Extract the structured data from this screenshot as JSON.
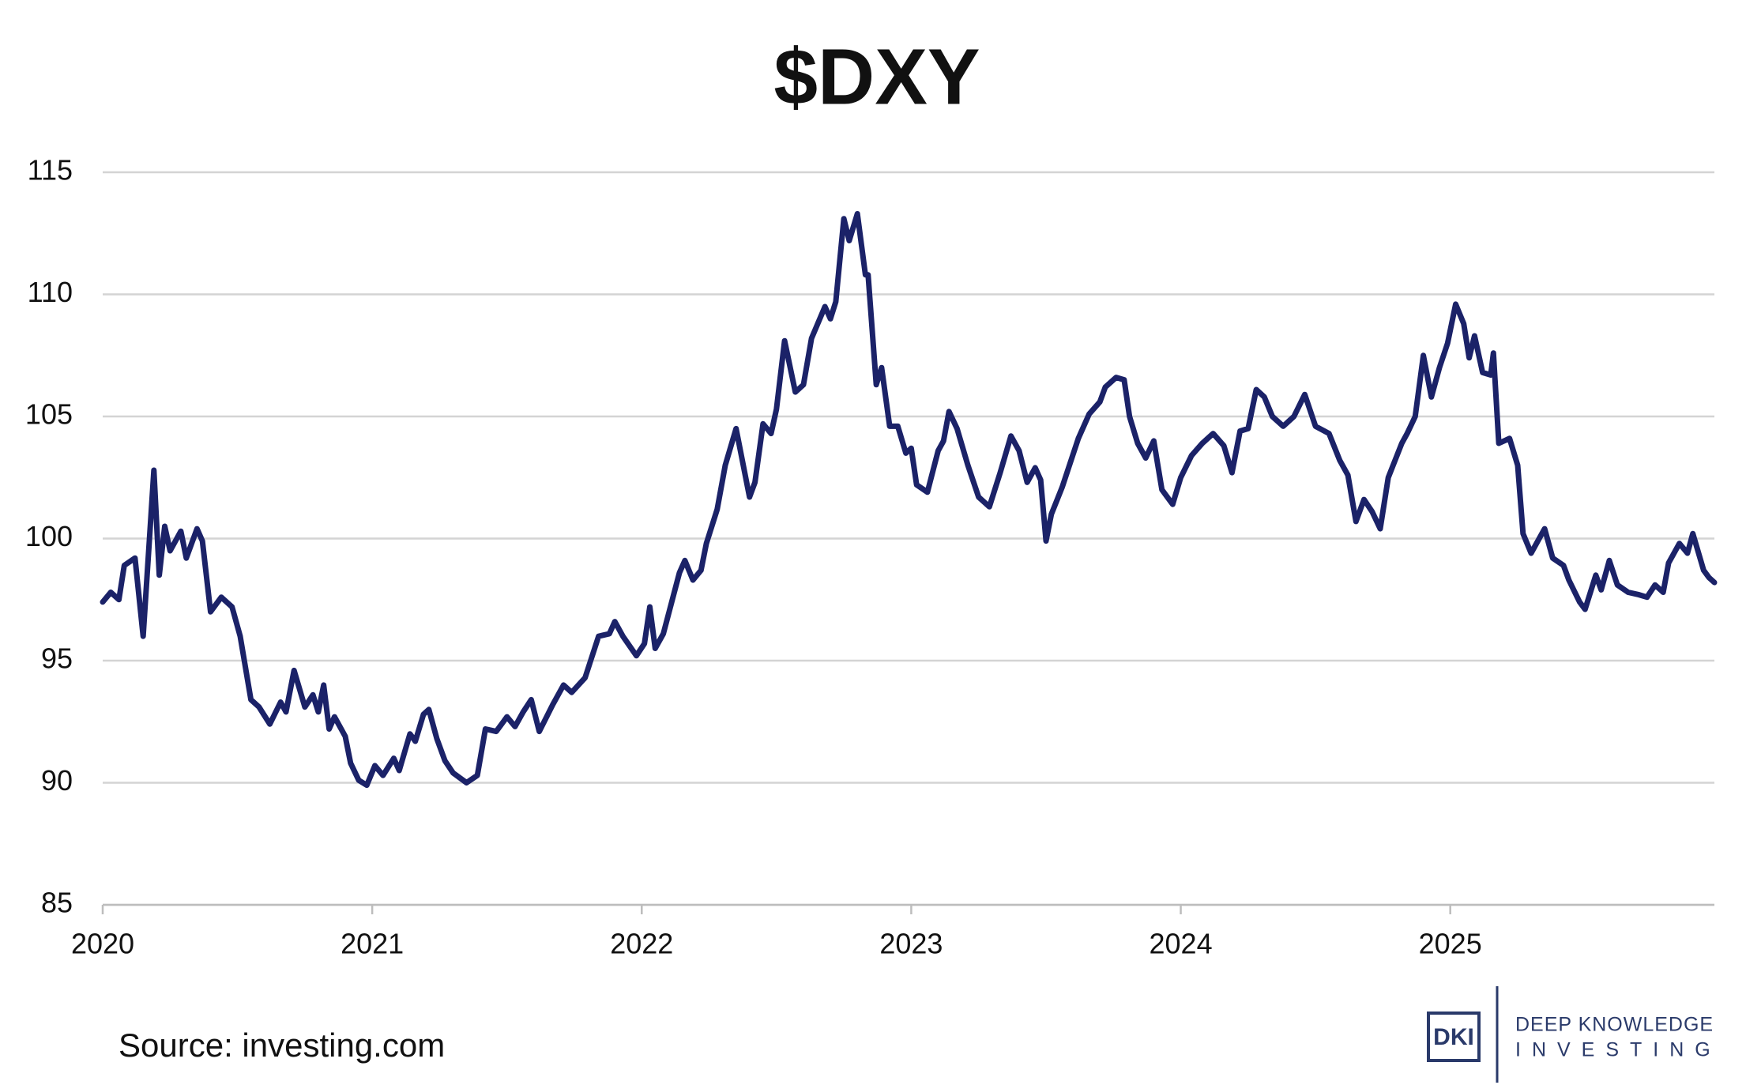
{
  "chart_data": {
    "type": "line",
    "title": "$DXY",
    "source": "Source: investing.com",
    "color": "#1b2268",
    "grid": true,
    "xlim": [
      2020,
      2025.98
    ],
    "xticks": [
      2020,
      2021,
      2022,
      2023,
      2024,
      2025
    ],
    "ylim": [
      85,
      115
    ],
    "yticks": [
      85,
      90,
      95,
      100,
      105,
      110,
      115
    ],
    "x": [
      2020.0,
      2020.03,
      2020.06,
      2020.08,
      2020.12,
      2020.15,
      2020.19,
      2020.21,
      2020.23,
      2020.25,
      2020.29,
      2020.31,
      2020.35,
      2020.37,
      2020.4,
      2020.44,
      2020.48,
      2020.51,
      2020.55,
      2020.58,
      2020.62,
      2020.66,
      2020.68,
      2020.71,
      2020.75,
      2020.78,
      2020.8,
      2020.82,
      2020.84,
      2020.86,
      2020.9,
      2020.92,
      2020.95,
      2020.98,
      2021.01,
      2021.04,
      2021.08,
      2021.1,
      2021.14,
      2021.16,
      2021.19,
      2021.21,
      2021.24,
      2021.27,
      2021.3,
      2021.35,
      2021.39,
      2021.42,
      2021.46,
      2021.5,
      2021.53,
      2021.56,
      2021.59,
      2021.62,
      2021.67,
      2021.71,
      2021.74,
      2021.79,
      2021.84,
      2021.88,
      2021.9,
      2021.93,
      2021.98,
      2022.01,
      2022.03,
      2022.05,
      2022.08,
      2022.14,
      2022.16,
      2022.19,
      2022.22,
      2022.24,
      2022.28,
      2022.31,
      2022.35,
      2022.4,
      2022.42,
      2022.45,
      2022.48,
      2022.5,
      2022.53,
      2022.57,
      2022.6,
      2022.63,
      2022.68,
      2022.7,
      2022.72,
      2022.75,
      2022.77,
      2022.8,
      2022.83,
      2022.84,
      2022.87,
      2022.89,
      2022.92,
      2022.95,
      2022.98,
      2023.0,
      2023.02,
      2023.06,
      2023.1,
      2023.12,
      2023.14,
      2023.17,
      2023.21,
      2023.25,
      2023.29,
      2023.33,
      2023.37,
      2023.4,
      2023.43,
      2023.46,
      2023.48,
      2023.5,
      2023.52,
      2023.56,
      2023.62,
      2023.66,
      2023.7,
      2023.72,
      2023.76,
      2023.79,
      2023.81,
      2023.84,
      2023.87,
      2023.9,
      2023.93,
      2023.97,
      2024.0,
      2024.04,
      2024.08,
      2024.12,
      2024.16,
      2024.19,
      2024.22,
      2024.25,
      2024.28,
      2024.31,
      2024.34,
      2024.38,
      2024.42,
      2024.46,
      2024.5,
      2024.55,
      2024.59,
      2024.62,
      2024.65,
      2024.68,
      2024.71,
      2024.74,
      2024.77,
      2024.82,
      2024.84,
      2024.87,
      2024.9,
      2024.93,
      2024.96,
      2024.99,
      2025.02,
      2025.05,
      2025.07,
      2025.09,
      2025.12,
      2025.15,
      2025.16,
      2025.18,
      2025.22,
      2025.25,
      2025.27,
      2025.3,
      2025.35,
      2025.38,
      2025.42,
      2025.44,
      2025.48,
      2025.5,
      2025.54,
      2025.56,
      2025.59,
      2025.62,
      2025.66,
      2025.7,
      2025.73,
      2025.76,
      2025.79,
      2025.81,
      2025.85,
      2025.88,
      2025.9,
      2025.94,
      2025.96,
      2025.98
    ],
    "values": [
      97.4,
      97.8,
      97.5,
      98.9,
      99.2,
      96.0,
      102.8,
      98.5,
      100.5,
      99.5,
      100.3,
      99.2,
      100.4,
      99.9,
      97.0,
      97.6,
      97.2,
      96.0,
      93.4,
      93.1,
      92.4,
      93.3,
      92.9,
      94.6,
      93.1,
      93.6,
      92.9,
      94.0,
      92.2,
      92.7,
      91.9,
      90.8,
      90.1,
      89.9,
      90.7,
      90.3,
      91.0,
      90.5,
      92.0,
      91.7,
      92.8,
      93.0,
      91.8,
      90.9,
      90.4,
      90.0,
      90.3,
      92.2,
      92.1,
      92.7,
      92.3,
      92.9,
      93.4,
      92.1,
      93.2,
      94.0,
      93.7,
      94.3,
      96.0,
      96.1,
      96.6,
      96.0,
      95.2,
      95.7,
      97.2,
      95.5,
      96.1,
      98.6,
      99.1,
      98.3,
      98.7,
      99.8,
      101.2,
      103.0,
      104.5,
      101.7,
      102.3,
      104.7,
      104.3,
      105.3,
      108.1,
      106.0,
      106.3,
      108.2,
      109.5,
      109.0,
      109.7,
      113.1,
      112.2,
      113.3,
      110.8,
      110.8,
      106.3,
      107.0,
      104.6,
      104.6,
      103.5,
      103.7,
      102.2,
      101.9,
      103.6,
      104.0,
      105.2,
      104.5,
      103.0,
      101.7,
      101.3,
      102.7,
      104.2,
      103.6,
      102.3,
      102.9,
      102.4,
      99.9,
      101.0,
      102.1,
      104.1,
      105.1,
      105.6,
      106.2,
      106.6,
      106.5,
      105.0,
      103.9,
      103.3,
      104.0,
      102.0,
      101.4,
      102.5,
      103.4,
      103.9,
      104.3,
      103.8,
      102.7,
      104.4,
      104.5,
      106.1,
      105.8,
      105.0,
      104.6,
      105.0,
      105.9,
      104.6,
      104.3,
      103.2,
      102.6,
      100.7,
      101.6,
      101.1,
      100.4,
      102.5,
      103.9,
      104.3,
      105.0,
      107.5,
      105.8,
      107.0,
      108.0,
      109.6,
      108.8,
      107.4,
      108.3,
      106.8,
      106.7,
      107.6,
      103.9,
      104.1,
      103.0,
      100.2,
      99.4,
      100.4,
      99.2,
      98.9,
      98.3,
      97.4,
      97.1,
      98.5,
      97.9,
      99.1,
      98.1,
      97.8,
      97.7,
      97.6,
      98.1,
      97.8,
      99.0,
      99.8,
      99.4,
      100.2,
      98.7,
      98.4,
      98.2
    ]
  },
  "branding": {
    "logo": "DKI",
    "name_line1": "DEEP KNOWLEDGE",
    "name_line2": "INVESTING"
  }
}
